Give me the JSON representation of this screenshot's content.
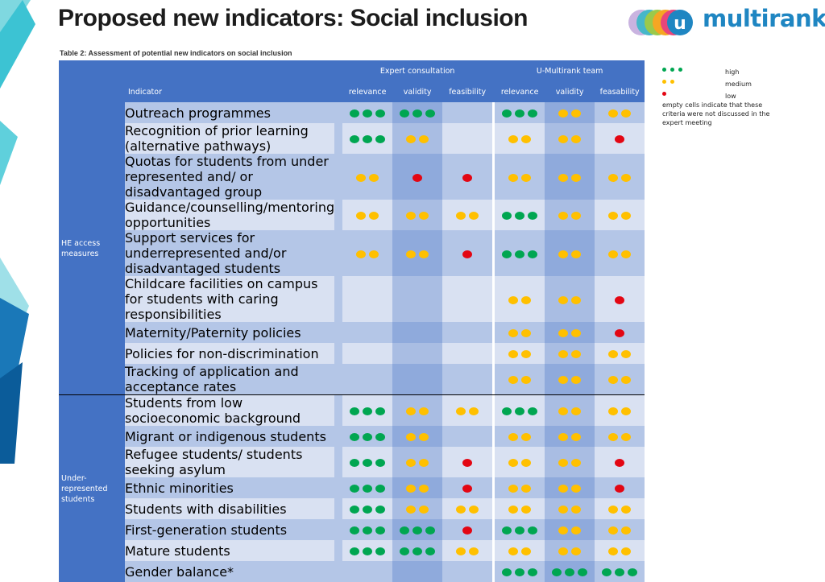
{
  "title": "Proposed new indicators: Social inclusion",
  "logo_text": "multirank",
  "logo_letter": "u",
  "caption": "Table 2: Assessment of potential new indicators on social inclusion",
  "groups": {
    "expert": "Expert consultation",
    "team": "U-Multirank team"
  },
  "columns": {
    "indicator": "Indicator",
    "exp": [
      "relevance",
      "validity",
      "feasibility"
    ],
    "team": [
      "relevance",
      "validity",
      "feasability"
    ]
  },
  "categories": {
    "he": "HE access measures",
    "ur": "Under-represented students"
  },
  "rows": [
    {
      "label": "Outreach programmes",
      "ratings": [
        "g3",
        "g3",
        "",
        "g3",
        "y2",
        "y2"
      ]
    },
    {
      "label": "Recognition of prior learning (alternative pathways)",
      "ratings": [
        "g3",
        "y2",
        "",
        "y2",
        "y2",
        "r1"
      ]
    },
    {
      "label": "Quotas for students from under represented and/ or disadvantaged group",
      "ratings": [
        "y2",
        "r1",
        "r1",
        "y2",
        "y2",
        "y2"
      ]
    },
    {
      "label": "Guidance/counselling/mentoring opportunities",
      "ratings": [
        "y2",
        "y2",
        "y2",
        "g3",
        "y2",
        "y2"
      ]
    },
    {
      "label": "Support services for underrepresented and/or disadvantaged students",
      "ratings": [
        "y2",
        "y2",
        "r1",
        "g3",
        "y2",
        "y2"
      ]
    },
    {
      "label": "Childcare facilities on campus for students with caring responsibilities",
      "ratings": [
        "",
        "",
        "",
        "y2",
        "y2",
        "r1"
      ]
    },
    {
      "label": "Maternity/Paternity policies",
      "ratings": [
        "",
        "",
        "",
        "y2",
        "y2",
        "r1"
      ]
    },
    {
      "label": "Policies for non-discrimination",
      "ratings": [
        "",
        "",
        "",
        "y2",
        "y2",
        "y2"
      ]
    },
    {
      "label": "Tracking of application and acceptance rates",
      "ratings": [
        "",
        "",
        "",
        "y2",
        "y2",
        "y2"
      ]
    },
    {
      "label": "Students from low socioeconomic background",
      "ratings": [
        "g3",
        "y2",
        "y2",
        "g3",
        "y2",
        "y2"
      ]
    },
    {
      "label": "Migrant or indigenous students",
      "ratings": [
        "g3",
        "y2",
        "",
        "y2",
        "y2",
        "y2"
      ]
    },
    {
      "label": "Refugee students/ students seeking asylum",
      "ratings": [
        "g3",
        "y2",
        "r1",
        "y2",
        "y2",
        "r1"
      ]
    },
    {
      "label": "Ethnic minorities",
      "ratings": [
        "g3",
        "y2",
        "r1",
        "y2",
        "y2",
        "r1"
      ]
    },
    {
      "label": "Students with disabilities",
      "ratings": [
        "g3",
        "y2",
        "y2",
        "y2",
        "y2",
        "y2"
      ]
    },
    {
      "label": "First-generation students",
      "ratings": [
        "g3",
        "g3",
        "r1",
        "g3",
        "y2",
        "y2"
      ]
    },
    {
      "label": "Mature students",
      "ratings": [
        "g3",
        "g3",
        "y2",
        "y2",
        "y2",
        "y2"
      ]
    },
    {
      "label": "Gender balance*",
      "ratings": [
        "",
        "",
        "",
        "g3",
        "g3",
        "g3"
      ]
    }
  ],
  "legend": {
    "high": "high",
    "medium": "medium",
    "low": "low",
    "note": "empty cells indicate that these criteria were not discussed in the expert meeting"
  },
  "colors": {
    "green": "#00a651",
    "yellow": "#ffc000",
    "red": "#e30613",
    "header": "#4472c4"
  }
}
